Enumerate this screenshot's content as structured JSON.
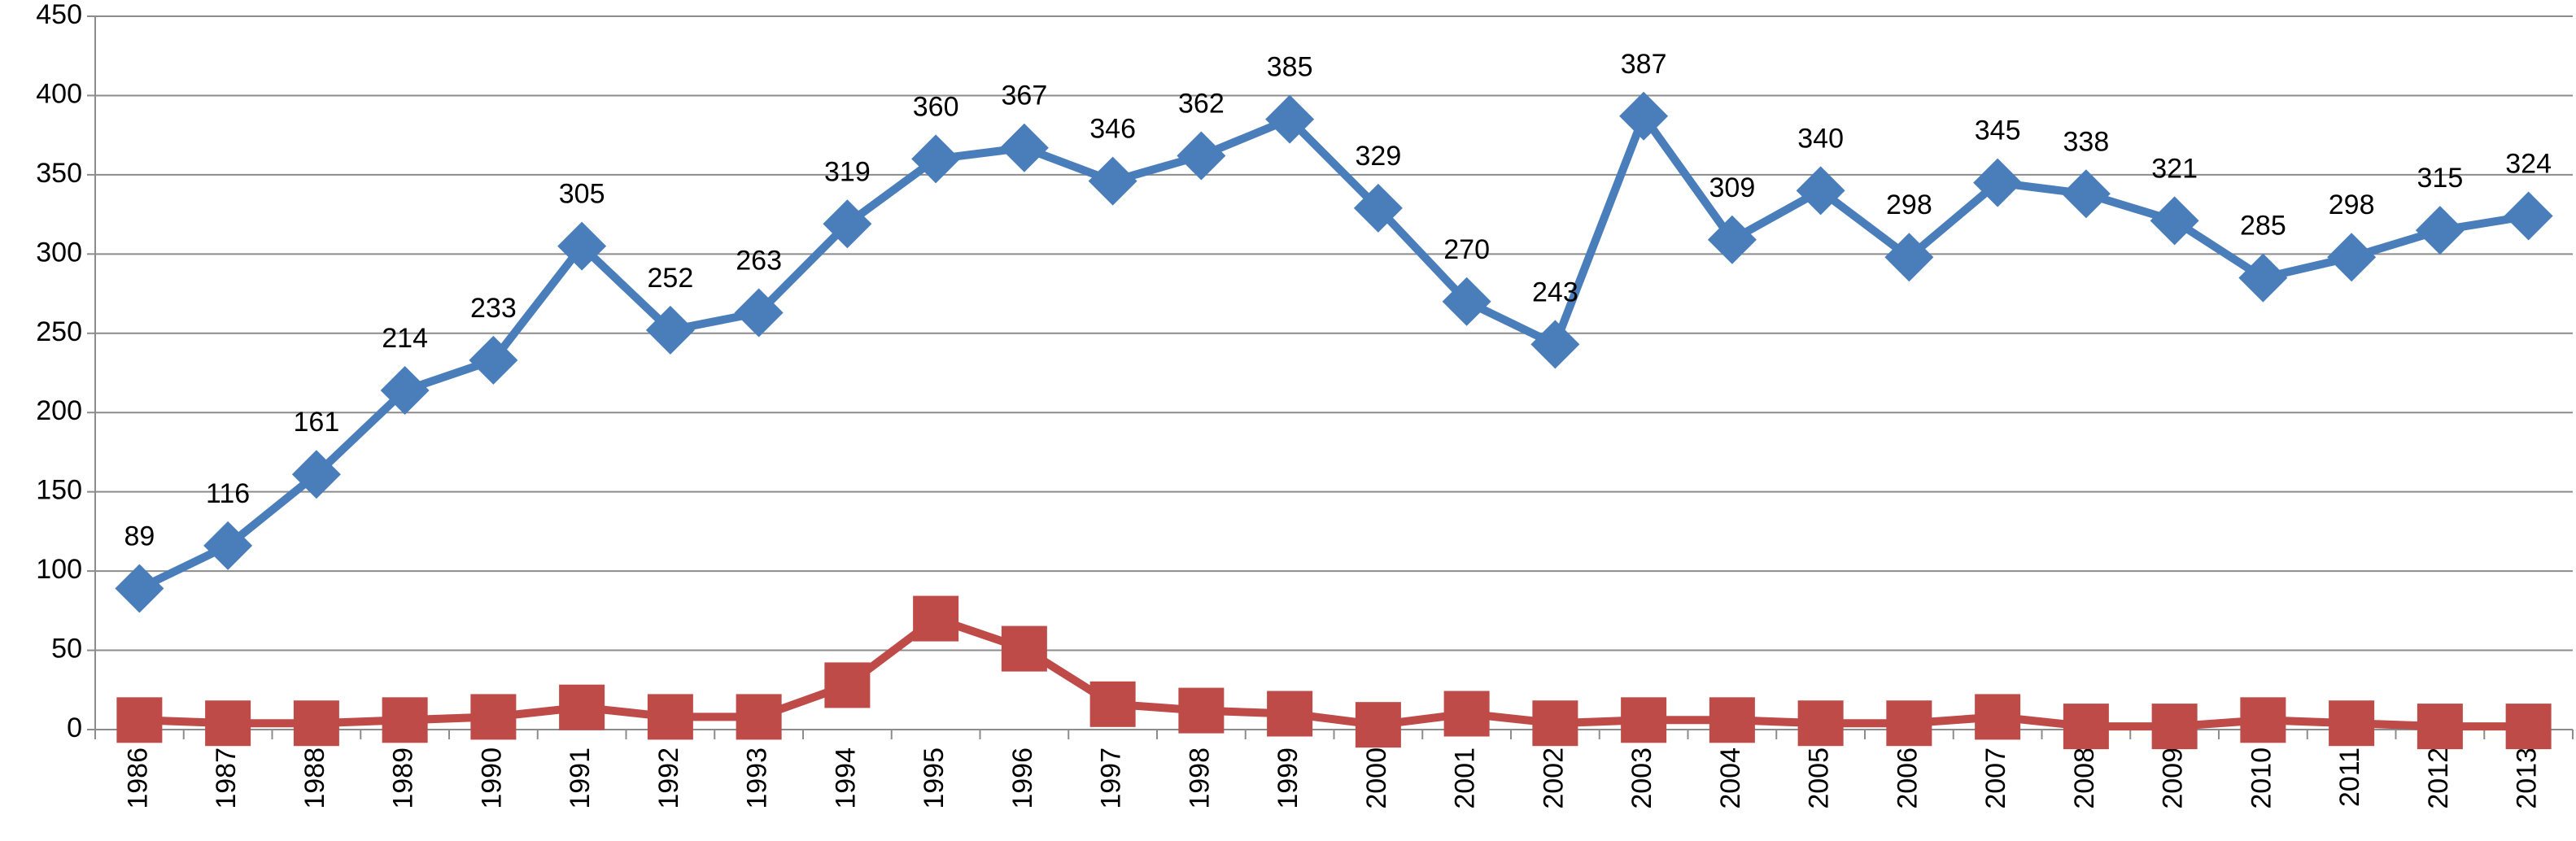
{
  "chart_data": {
    "type": "line",
    "categories": [
      "1986",
      "1987",
      "1988",
      "1989",
      "1990",
      "1991",
      "1992",
      "1993",
      "1994",
      "1995",
      "1996",
      "1997",
      "1998",
      "1999",
      "2000",
      "2001",
      "2002",
      "2003",
      "2004",
      "2005",
      "2006",
      "2007",
      "2008",
      "2009",
      "2010",
      "2011",
      "2012",
      "2013"
    ],
    "series": [
      {
        "color": "#4a7ebb",
        "marker": "diamond",
        "data_labels": true,
        "values": [
          89,
          116,
          161,
          214,
          233,
          305,
          252,
          263,
          319,
          360,
          367,
          346,
          362,
          385,
          329,
          270,
          243,
          387,
          309,
          340,
          298,
          345,
          338,
          321,
          285,
          298,
          315,
          324
        ]
      },
      {
        "color": "#be4b48",
        "marker": "square",
        "data_labels": false,
        "values": [
          6,
          4,
          4,
          6,
          8,
          14,
          8,
          8,
          28,
          70,
          51,
          16,
          12,
          10,
          3,
          10,
          4,
          6,
          6,
          4,
          4,
          8,
          2,
          2,
          6,
          4,
          2,
          2
        ]
      }
    ],
    "ylim": [
      0,
      450
    ],
    "yticks": [
      0,
      50,
      100,
      150,
      200,
      250,
      300,
      350,
      400,
      450
    ],
    "grid": true
  }
}
